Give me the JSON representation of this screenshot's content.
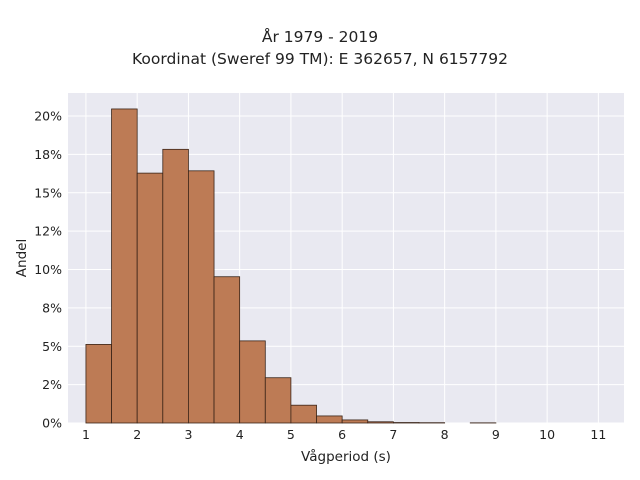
{
  "chart_data": {
    "type": "bar",
    "title": "År 1979 - 2019",
    "subtitle": "Koordinat (Sweref 99 TM): E 362657, N 6157792",
    "xlabel": "Vågperiod (s)",
    "ylabel": "Andel",
    "xlim": [
      0.65,
      11.5
    ],
    "ylim": [
      0,
      0.215
    ],
    "x_ticks": [
      1,
      2,
      3,
      4,
      5,
      6,
      7,
      8,
      9,
      10,
      11
    ],
    "y_ticks": [
      0,
      0.025,
      0.05,
      0.075,
      0.1,
      0.125,
      0.15,
      0.175,
      0.2
    ],
    "y_tick_labels": [
      "0%",
      "2%",
      "5%",
      "8%",
      "10%",
      "12%",
      "15%",
      "18%",
      "20%"
    ],
    "bin_width": 0.5,
    "bin_starts": [
      1.0,
      1.5,
      2.0,
      2.5,
      3.0,
      3.5,
      4.0,
      4.5,
      5.0,
      5.5,
      6.0,
      6.5,
      7.0,
      7.5,
      8.0,
      8.5,
      9.0
    ],
    "values": [
      0.0512,
      0.2046,
      0.1628,
      0.1783,
      0.1643,
      0.0953,
      0.0535,
      0.0295,
      0.0116,
      0.0046,
      0.002,
      0.0008,
      0.0003,
      0.0002,
      0.0,
      0.0001,
      0.0
    ],
    "grid": true,
    "colors": {
      "bar_fill": "#bd7b55",
      "bar_edge": "#3a2418",
      "plot_background": "#e9e9f1",
      "grid": "#ffffff",
      "text": "#222222"
    }
  }
}
